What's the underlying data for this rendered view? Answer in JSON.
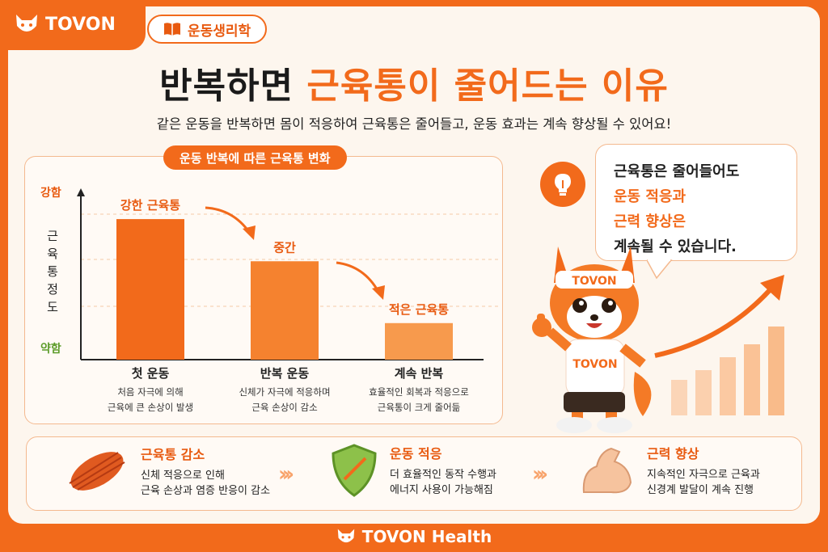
{
  "brand": {
    "name": "TOVON"
  },
  "category": {
    "label": "운동생리학"
  },
  "title": {
    "part1": "반복하면 ",
    "highlight": "근육통이 줄어드는 이유"
  },
  "subtitle": "같은 운동을 반복하면 몸이 적응하여 근육통은 줄어들고, 운동 효과는 계속 향상될 수 있어요!",
  "chart_tag": "운동 반복에 따른 근육통 변화",
  "chart_data": {
    "type": "bar",
    "ylabel": "근육통 정도",
    "ytick_high": "강함",
    "ytick_low": "약함",
    "categories": [
      "첫 운동",
      "반복 운동",
      "계속 반복"
    ],
    "values": [
      100,
      70,
      26
    ],
    "ylim": [
      0,
      115
    ],
    "value_labels": [
      "강한 근육통",
      "중간",
      "적은 근육통"
    ],
    "descriptions": [
      [
        "처음 자극에 의해",
        "근육에 큰 손상이 발생"
      ],
      [
        "신체가 자극에 적응하며",
        "근육 손상이 감소"
      ],
      [
        "효율적인 회복과 적응으로",
        "근육통이 크게 줄어듦"
      ]
    ],
    "colors": [
      "#f26a1b",
      "#f5822f",
      "#f79a4d"
    ]
  },
  "bubble": {
    "line1": "근육통은 줄어들어도",
    "line2": "운동 적응과",
    "line3": "근력 향상은",
    "line4": "계속될 수 있습니다."
  },
  "mascot": {
    "headband": "TOVON",
    "shirt": "TOVON"
  },
  "features": [
    {
      "icon": "muscle-fiber-icon",
      "title": "근육통 감소",
      "desc1": "신체 적응으로 인해",
      "desc2": "근육 손상과 염증 반응이 감소"
    },
    {
      "icon": "shield-icon",
      "title": "운동 적응",
      "desc1": "더 효율적인 동작 수행과",
      "desc2": "에너지 사용이 가능해짐"
    },
    {
      "icon": "flexed-arm-icon",
      "title": "근력 향상",
      "desc1": "지속적인 자극으로 근육과",
      "desc2": "신경계 발달이 계속 진행"
    }
  ],
  "chevrons": "›››",
  "footer": {
    "label": "TOVON Health"
  }
}
